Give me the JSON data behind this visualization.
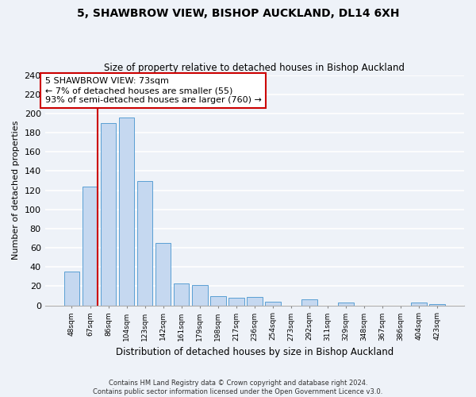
{
  "title": "5, SHAWBROW VIEW, BISHOP AUCKLAND, DL14 6XH",
  "subtitle": "Size of property relative to detached houses in Bishop Auckland",
  "xlabel": "Distribution of detached houses by size in Bishop Auckland",
  "ylabel": "Number of detached properties",
  "bar_labels": [
    "48sqm",
    "67sqm",
    "86sqm",
    "104sqm",
    "123sqm",
    "142sqm",
    "161sqm",
    "179sqm",
    "198sqm",
    "217sqm",
    "236sqm",
    "254sqm",
    "273sqm",
    "292sqm",
    "311sqm",
    "329sqm",
    "348sqm",
    "367sqm",
    "386sqm",
    "404sqm",
    "423sqm"
  ],
  "bar_values": [
    35,
    124,
    190,
    196,
    130,
    65,
    23,
    21,
    10,
    8,
    9,
    4,
    0,
    6,
    0,
    3,
    0,
    0,
    0,
    3,
    1
  ],
  "bar_color": "#c5d8f0",
  "bar_edge_color": "#5a9fd4",
  "ylim": [
    0,
    240
  ],
  "yticks": [
    0,
    20,
    40,
    60,
    80,
    100,
    120,
    140,
    160,
    180,
    200,
    220,
    240
  ],
  "vline_color": "#cc0000",
  "annotation_title": "5 SHAWBROW VIEW: 73sqm",
  "annotation_line1": "← 7% of detached houses are smaller (55)",
  "annotation_line2": "93% of semi-detached houses are larger (760) →",
  "annotation_box_color": "#cc0000",
  "footer_line1": "Contains HM Land Registry data © Crown copyright and database right 2024.",
  "footer_line2": "Contains public sector information licensed under the Open Government Licence v3.0.",
  "background_color": "#eef2f8"
}
